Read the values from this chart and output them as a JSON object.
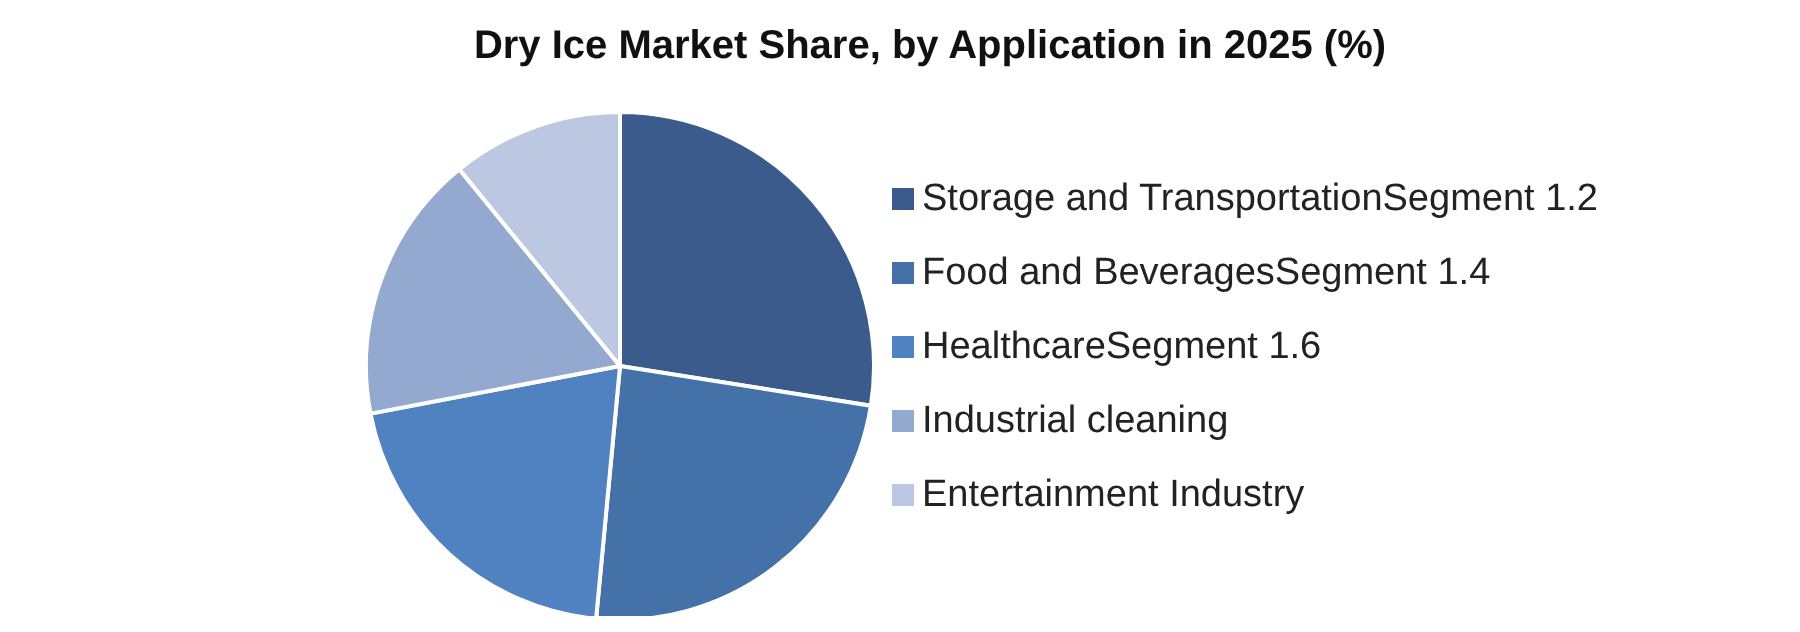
{
  "chart_data": {
    "type": "pie",
    "title": "Dry Ice Market Share, by Application in 2025 (%)",
    "categories": [
      "Storage and TransportationSegment 1.2",
      "Food and BeveragesSegment 1.4",
      "HealthcareSegment 1.6",
      "Industrial cleaning",
      "Entertainment Industry"
    ],
    "values": [
      27.5,
      24,
      20.5,
      17.1,
      10.9
    ],
    "colors": [
      "#3b5b8c",
      "#4571a9",
      "#5082c2",
      "#94a9d0",
      "#bcc8e1"
    ],
    "legend": "right"
  }
}
